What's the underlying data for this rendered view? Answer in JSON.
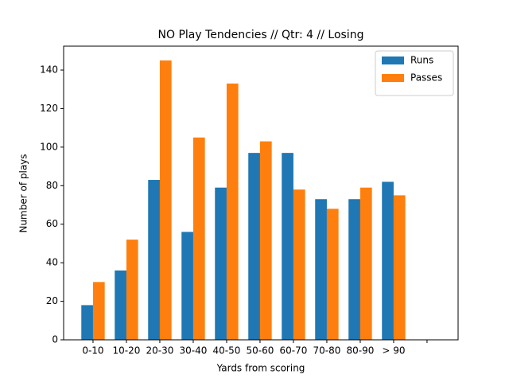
{
  "chart_data": {
    "type": "bar",
    "title": "NO Play Tendencies // Qtr: 4 // Losing",
    "xlabel": "Yards from scoring",
    "ylabel": "Number of plays",
    "categories": [
      "0-10",
      "10-20",
      "20-30",
      "30-40",
      "40-50",
      "50-60",
      "60-70",
      "70-80",
      "80-90",
      "> 90",
      null
    ],
    "series": [
      {
        "name": "Runs",
        "color": "#1f77b4",
        "values": [
          18,
          36,
          83,
          56,
          79,
          97,
          97,
          73,
          73,
          82,
          null
        ]
      },
      {
        "name": "Passes",
        "color": "#ff7f0e",
        "values": [
          30,
          52,
          145,
          105,
          133,
          103,
          78,
          68,
          79,
          75,
          null
        ]
      }
    ],
    "ylim": [
      0,
      152.4
    ],
    "yticks": [
      0,
      20,
      40,
      60,
      80,
      100,
      120,
      140
    ],
    "legend": "upper right"
  }
}
